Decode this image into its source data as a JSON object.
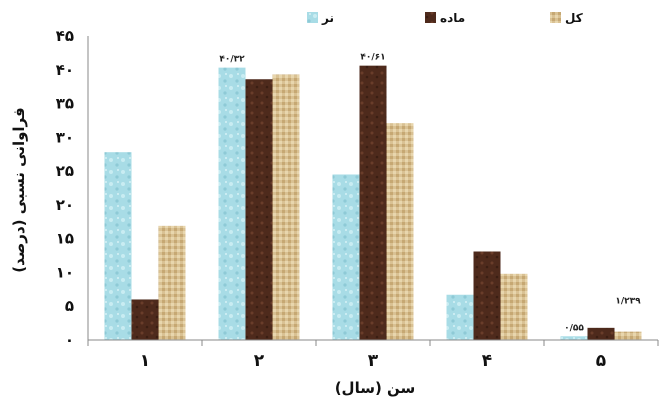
{
  "chart_data": {
    "type": "bar",
    "title": "",
    "xlabel": "سن (سال)",
    "ylabel": "فراوانی نسبی (درصد)",
    "categories": [
      "۱",
      "۲",
      "۳",
      "۴",
      "۵"
    ],
    "yticks": [
      "۰",
      "۵",
      "۱۰",
      "۱۵",
      "۲۰",
      "۲۵",
      "۳۰",
      "۳۵",
      "۴۰",
      "۴۵"
    ],
    "ylim": [
      0,
      45
    ],
    "grid": false,
    "legend_position": "top",
    "series": [
      {
        "name": "نر",
        "color": "#a8dce6",
        "values": [
          27.8,
          40.32,
          24.5,
          6.7,
          0.55
        ]
      },
      {
        "name": "ماده",
        "color": "#4e2a1c",
        "values": [
          6.0,
          38.6,
          40.61,
          13.1,
          1.8
        ]
      },
      {
        "name": "کل",
        "color": "#d9c193",
        "values": [
          16.9,
          39.3,
          32.1,
          9.8,
          1.239
        ]
      }
    ],
    "annotations": [
      {
        "text": "۴۰/۳۲",
        "category": 1,
        "series": 0
      },
      {
        "text": "۴۰/۶۱",
        "category": 2,
        "series": 1
      },
      {
        "text": "۰/۵۵",
        "category": 4,
        "series": 0
      },
      {
        "text": "۱/۲۳۹",
        "category": 4,
        "series": 2
      }
    ]
  }
}
